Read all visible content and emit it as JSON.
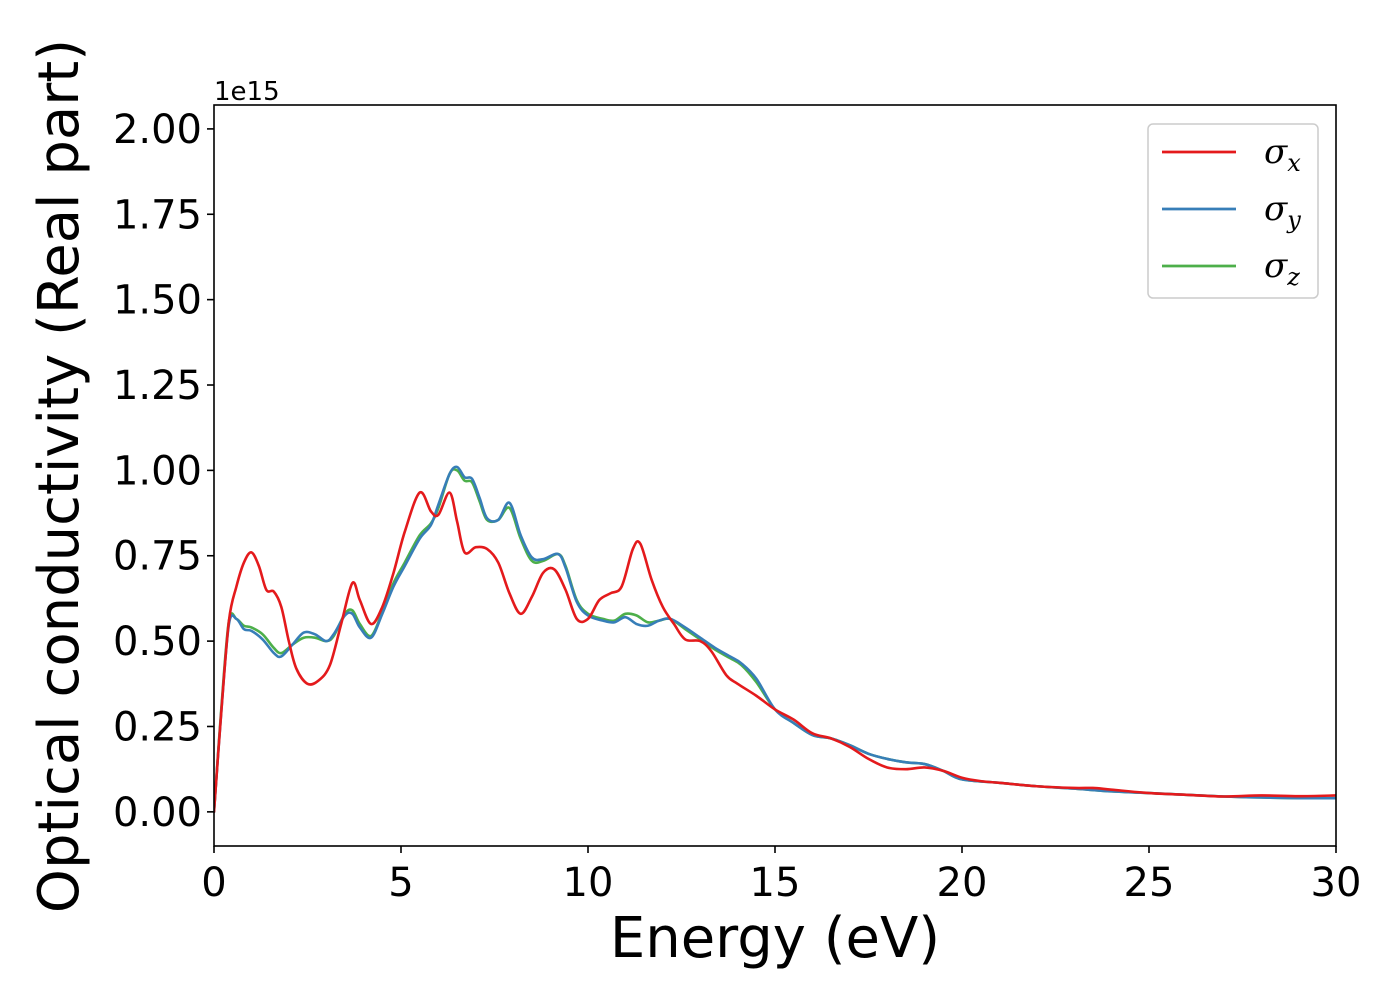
{
  "chart_data": {
    "type": "line",
    "xlabel": "Energy (eV)",
    "ylabel": "Optical conductivity (Real part)",
    "y_offset_label": "1e15",
    "xlim": [
      0,
      30
    ],
    "ylim": [
      -0.1,
      2.07
    ],
    "x_ticks": [
      0,
      5,
      10,
      15,
      20,
      25,
      30
    ],
    "x_tick_labels": [
      "0",
      "5",
      "10",
      "15",
      "20",
      "25",
      "30"
    ],
    "y_ticks": [
      0,
      0.25,
      0.5,
      0.75,
      1.0,
      1.25,
      1.5,
      1.75,
      2.0
    ],
    "y_tick_labels": [
      "0.00",
      "0.25",
      "0.50",
      "0.75",
      "1.00",
      "1.25",
      "1.50",
      "1.75",
      "2.00"
    ],
    "grid": false,
    "legend_position": "top-right",
    "series": [
      {
        "name": "σx",
        "name_base": "σ",
        "name_sub": "x",
        "color": "#e41a1c",
        "x": [
          0,
          0.2,
          0.4,
          0.6,
          0.8,
          1.0,
          1.2,
          1.4,
          1.6,
          1.8,
          2.0,
          2.2,
          2.5,
          2.8,
          3.1,
          3.4,
          3.7,
          3.9,
          4.2,
          4.5,
          4.8,
          5.1,
          5.5,
          5.8,
          6.0,
          6.3,
          6.5,
          6.7,
          7.0,
          7.3,
          7.6,
          7.9,
          8.2,
          8.5,
          8.8,
          9.1,
          9.4,
          9.7,
          10.0,
          10.3,
          10.6,
          10.9,
          11.2,
          11.4,
          11.7,
          12.0,
          12.3,
          12.6,
          13.0,
          13.3,
          13.7,
          14.0,
          14.5,
          15.0,
          15.5,
          16.0,
          16.5,
          17.0,
          17.5,
          18.0,
          18.5,
          19.0,
          19.5,
          20.0,
          20.5,
          21.0,
          22.0,
          23.0,
          23.5,
          24.0,
          25.0,
          26.0,
          27.0,
          28.0,
          29.0,
          30.0
        ],
        "y": [
          0.0,
          0.3,
          0.56,
          0.66,
          0.73,
          0.76,
          0.72,
          0.65,
          0.645,
          0.6,
          0.5,
          0.42,
          0.375,
          0.385,
          0.43,
          0.55,
          0.67,
          0.62,
          0.55,
          0.6,
          0.7,
          0.82,
          0.935,
          0.88,
          0.87,
          0.935,
          0.85,
          0.76,
          0.775,
          0.77,
          0.73,
          0.64,
          0.58,
          0.63,
          0.7,
          0.71,
          0.65,
          0.565,
          0.565,
          0.62,
          0.64,
          0.66,
          0.77,
          0.785,
          0.68,
          0.6,
          0.55,
          0.505,
          0.5,
          0.47,
          0.4,
          0.375,
          0.34,
          0.3,
          0.27,
          0.23,
          0.215,
          0.19,
          0.155,
          0.13,
          0.125,
          0.13,
          0.12,
          0.1,
          0.09,
          0.085,
          0.075,
          0.07,
          0.07,
          0.065,
          0.055,
          0.05,
          0.045,
          0.048,
          0.046,
          0.048
        ]
      },
      {
        "name": "σy",
        "name_base": "σ",
        "name_sub": "y",
        "color": "#377eb8",
        "x": [
          0,
          0.2,
          0.4,
          0.6,
          0.8,
          1.0,
          1.3,
          1.6,
          1.8,
          2.1,
          2.4,
          2.7,
          3.0,
          3.2,
          3.5,
          3.7,
          3.9,
          4.2,
          4.5,
          4.8,
          5.1,
          5.5,
          5.8,
          6.0,
          6.3,
          6.5,
          6.7,
          6.9,
          7.1,
          7.3,
          7.6,
          7.9,
          8.2,
          8.5,
          8.8,
          9.2,
          9.4,
          9.7,
          10.0,
          10.4,
          10.7,
          11.0,
          11.3,
          11.6,
          11.9,
          12.2,
          12.6,
          13.0,
          13.4,
          13.8,
          14.1,
          14.5,
          15.0,
          15.5,
          16.0,
          16.5,
          17.0,
          17.5,
          18.0,
          18.5,
          19.0,
          19.5,
          20.0,
          21.0,
          22.0,
          23.0,
          24.0,
          25.0,
          26.0,
          27.0,
          28.0,
          29.0,
          30.0
        ],
        "y": [
          0.0,
          0.3,
          0.55,
          0.565,
          0.535,
          0.53,
          0.505,
          0.465,
          0.455,
          0.49,
          0.525,
          0.52,
          0.5,
          0.52,
          0.575,
          0.58,
          0.54,
          0.51,
          0.58,
          0.66,
          0.72,
          0.8,
          0.84,
          0.9,
          0.99,
          1.01,
          0.98,
          0.975,
          0.92,
          0.86,
          0.855,
          0.905,
          0.81,
          0.745,
          0.74,
          0.755,
          0.715,
          0.615,
          0.575,
          0.56,
          0.555,
          0.57,
          0.55,
          0.545,
          0.56,
          0.565,
          0.54,
          0.51,
          0.48,
          0.455,
          0.435,
          0.39,
          0.3,
          0.26,
          0.225,
          0.215,
          0.195,
          0.17,
          0.155,
          0.145,
          0.14,
          0.12,
          0.095,
          0.085,
          0.075,
          0.068,
          0.06,
          0.055,
          0.05,
          0.045,
          0.042,
          0.04,
          0.04
        ]
      },
      {
        "name": "σz",
        "name_base": "σ",
        "name_sub": "z",
        "color": "#4daf4a",
        "x": [
          0,
          0.2,
          0.4,
          0.6,
          0.8,
          1.0,
          1.3,
          1.6,
          1.8,
          2.1,
          2.4,
          2.7,
          3.0,
          3.2,
          3.5,
          3.7,
          3.9,
          4.2,
          4.5,
          4.8,
          5.1,
          5.5,
          5.8,
          6.0,
          6.3,
          6.5,
          6.7,
          6.9,
          7.1,
          7.3,
          7.6,
          7.9,
          8.2,
          8.5,
          8.8,
          9.2,
          9.4,
          9.7,
          10.0,
          10.4,
          10.7,
          11.0,
          11.3,
          11.6,
          11.9,
          12.2,
          12.6,
          13.0,
          13.4,
          13.8,
          14.1,
          14.5,
          15.0,
          15.5,
          16.0,
          16.5,
          17.0,
          17.5,
          18.0,
          18.5,
          19.0,
          19.5,
          20.0,
          21.0,
          22.0,
          23.0,
          24.0,
          25.0,
          26.0,
          27.0,
          28.0,
          29.0,
          30.0
        ],
        "y": [
          0.0,
          0.31,
          0.56,
          0.565,
          0.545,
          0.54,
          0.52,
          0.48,
          0.465,
          0.49,
          0.51,
          0.51,
          0.5,
          0.515,
          0.58,
          0.59,
          0.55,
          0.515,
          0.585,
          0.67,
          0.73,
          0.81,
          0.845,
          0.89,
          0.99,
          1.0,
          0.97,
          0.965,
          0.91,
          0.855,
          0.855,
          0.89,
          0.8,
          0.735,
          0.735,
          0.755,
          0.72,
          0.62,
          0.58,
          0.565,
          0.56,
          0.58,
          0.575,
          0.555,
          0.56,
          0.565,
          0.535,
          0.505,
          0.475,
          0.45,
          0.43,
          0.38,
          0.3,
          0.26,
          0.225,
          0.215,
          0.195,
          0.17,
          0.155,
          0.145,
          0.14,
          0.12,
          0.095,
          0.085,
          0.075,
          0.068,
          0.06,
          0.055,
          0.05,
          0.045,
          0.042,
          0.04,
          0.04
        ]
      }
    ]
  }
}
